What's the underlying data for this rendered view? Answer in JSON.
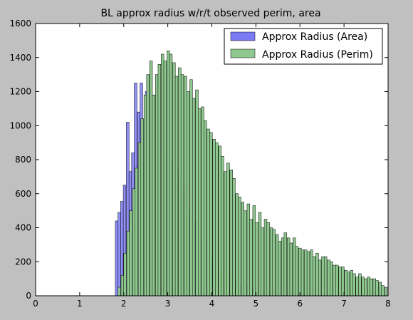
{
  "chart_data": {
    "type": "bar",
    "title": "BL approx radius w/r/t observed perim, area",
    "xlabel": "",
    "ylabel": "",
    "xlim": [
      0,
      8
    ],
    "ylim": [
      0,
      1600
    ],
    "xticks": [
      "0",
      "1",
      "2",
      "3",
      "4",
      "5",
      "6",
      "7",
      "8"
    ],
    "yticks": [
      "0",
      "200",
      "400",
      "600",
      "800",
      "1000",
      "1200",
      "1400",
      "1600"
    ],
    "grid": false,
    "legend_position": "top-right",
    "bin_width": 0.062,
    "series": [
      {
        "name": "Approx Radius (Area)",
        "color": "#7b7bf5",
        "x": [
          1.84,
          1.9,
          1.96,
          2.02,
          2.09,
          2.15,
          2.21,
          2.27,
          2.34,
          2.4,
          2.46,
          2.52,
          2.58,
          2.65,
          2.71,
          2.77,
          2.83,
          2.89,
          2.96,
          3.02,
          3.08,
          3.14,
          3.21,
          3.27,
          3.33,
          3.39,
          3.45,
          3.52,
          3.58,
          3.64,
          3.7,
          3.77,
          3.83,
          3.89,
          3.95,
          4.01,
          4.08,
          4.14,
          4.2,
          4.26,
          4.32,
          4.39,
          4.45,
          4.51,
          4.57,
          4.64,
          4.7,
          4.76,
          4.82,
          4.88,
          4.95,
          5.01,
          5.07,
          5.13,
          5.2,
          5.26,
          5.32,
          5.38,
          5.44,
          5.51,
          5.57,
          5.63,
          5.69,
          5.75,
          5.82,
          5.88,
          5.94,
          6.0,
          6.07,
          6.13,
          6.19,
          6.25,
          6.31,
          6.38,
          6.44,
          6.5,
          6.56,
          6.62
        ],
        "values": [
          440,
          490,
          555,
          650,
          1020,
          730,
          840,
          1250,
          1080,
          1250,
          1040,
          1200,
          1200,
          1050,
          1070,
          1020,
          880,
          900,
          840,
          780,
          790,
          760,
          740,
          700,
          650,
          610,
          560,
          500,
          470,
          440,
          370,
          330,
          310,
          320,
          270,
          220,
          205,
          190,
          165,
          155,
          140,
          120,
          105,
          95,
          80,
          70,
          65,
          60,
          55,
          45,
          45,
          40,
          35,
          30,
          25,
          25,
          22,
          20,
          20,
          18,
          16,
          15,
          14,
          12,
          12,
          10,
          10,
          9,
          8,
          8,
          7,
          6,
          6,
          5,
          5,
          5,
          4,
          4
        ]
      },
      {
        "name": "Approx Radius (Perim)",
        "color": "#8fc88f",
        "x": [
          1.9,
          1.97,
          2.03,
          2.1,
          2.16,
          2.23,
          2.29,
          2.36,
          2.42,
          2.49,
          2.55,
          2.62,
          2.68,
          2.75,
          2.81,
          2.88,
          2.94,
          3.01,
          3.07,
          3.14,
          3.2,
          3.27,
          3.33,
          3.4,
          3.46,
          3.53,
          3.59,
          3.66,
          3.72,
          3.79,
          3.85,
          3.92,
          3.98,
          4.05,
          4.11,
          4.18,
          4.24,
          4.31,
          4.37,
          4.44,
          4.5,
          4.57,
          4.63,
          4.7,
          4.76,
          4.83,
          4.89,
          4.96,
          5.02,
          5.09,
          5.15,
          5.22,
          5.28,
          5.35,
          5.41,
          5.48,
          5.54,
          5.61,
          5.67,
          5.74,
          5.8,
          5.87,
          5.93,
          6.0,
          6.06,
          6.13,
          6.19,
          6.26,
          6.32,
          6.39,
          6.45,
          6.52,
          6.58,
          6.65,
          6.71,
          6.78,
          6.84,
          6.91,
          6.97,
          7.04,
          7.1,
          7.17,
          7.23,
          7.3,
          7.36,
          7.43,
          7.49,
          7.56,
          7.62,
          7.69,
          7.75,
          7.82,
          7.88,
          7.95
        ],
        "values": [
          50,
          120,
          250,
          380,
          500,
          630,
          750,
          900,
          1040,
          1180,
          1300,
          1380,
          1180,
          1300,
          1360,
          1420,
          1380,
          1440,
          1420,
          1370,
          1290,
          1340,
          1300,
          1290,
          1200,
          1270,
          1160,
          1210,
          1100,
          1110,
          1030,
          980,
          960,
          920,
          900,
          880,
          820,
          730,
          780,
          740,
          690,
          600,
          580,
          550,
          500,
          540,
          450,
          530,
          430,
          490,
          400,
          450,
          430,
          400,
          390,
          360,
          320,
          340,
          370,
          340,
          310,
          340,
          290,
          280,
          270,
          270,
          260,
          270,
          230,
          250,
          210,
          230,
          230,
          210,
          200,
          180,
          180,
          170,
          170,
          150,
          140,
          150,
          130,
          110,
          130,
          110,
          100,
          110,
          100,
          100,
          90,
          80,
          60,
          50
        ]
      }
    ]
  }
}
